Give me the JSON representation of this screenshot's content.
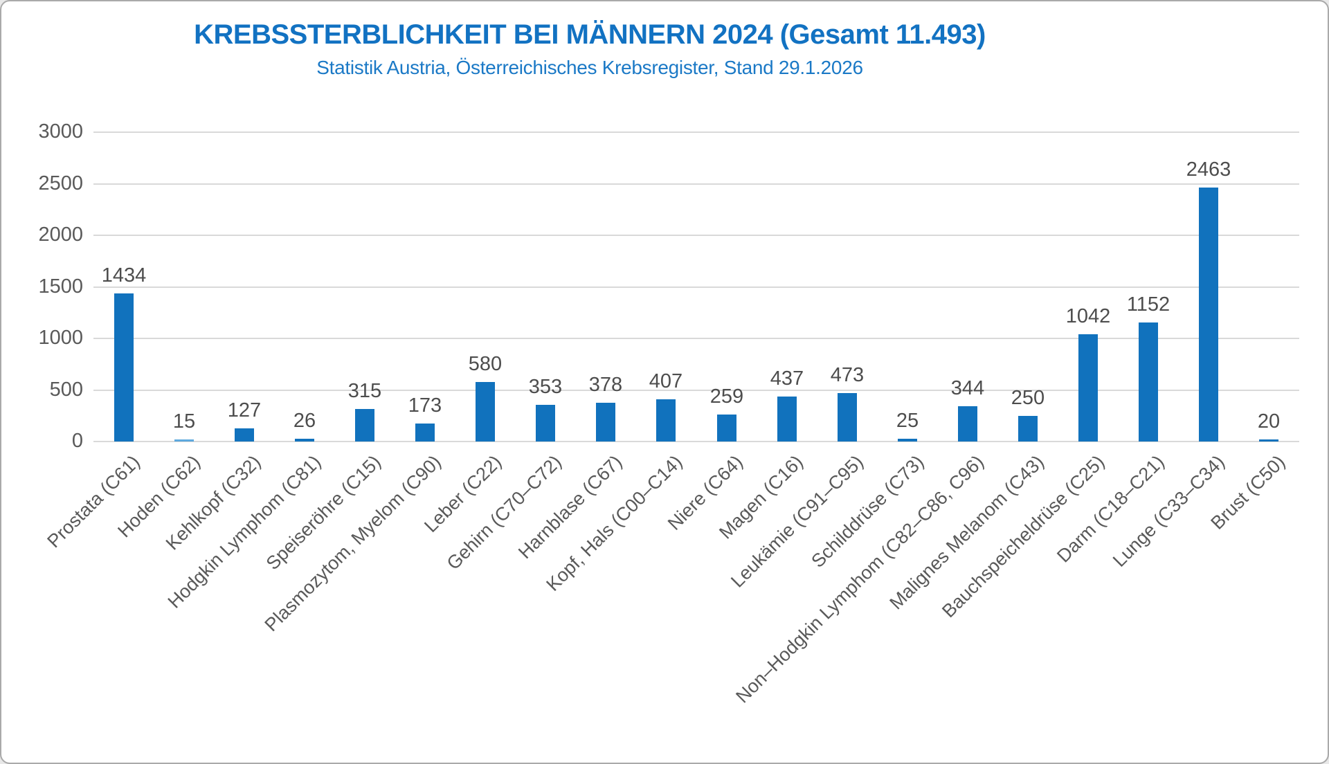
{
  "chart_data": {
    "type": "bar",
    "title": "KREBSSTERBLICHKEIT BEI MÄNNERN 2024 (Gesamt 11.493)",
    "subtitle": "Statistik Austria, Österreichisches Krebsregister, Stand 29.1.2026",
    "total_shown_in_title": "11.493",
    "categories": [
      "Prostata (C61)",
      "Hoden (C62)",
      "Kehlkopf (C32)",
      "Hodgkin Lymphom (C81)",
      "Speiseröhre (C15)",
      "Plasmozytom, Myelom (C90)",
      "Leber (C22)",
      "Gehirn (C70–C72)",
      "Harnblase (C67)",
      "Kopf, Hals (C00–C14)",
      "Niere (C64)",
      "Magen (C16)",
      "Leukämie (C91–C95)",
      "Schilddrüse (C73)",
      "Non–Hodgkin Lymphom (C82–C86, C96)",
      "Malignes Melanom (C43)",
      "Bauchspeicheldrüse (C25)",
      "Darm (C18–C21)",
      "Lunge (C33–C34)",
      "Brust (C50)"
    ],
    "values": [
      1434,
      15,
      127,
      26,
      315,
      173,
      580,
      353,
      378,
      407,
      259,
      437,
      473,
      25,
      344,
      250,
      1042,
      1152,
      2463,
      20
    ],
    "data_labels": [
      "1434",
      "15",
      "127",
      "26",
      "315",
      "173",
      "580",
      "353",
      "378",
      "407",
      "259",
      "437",
      "473",
      "25",
      "344",
      "250",
      "1042",
      "1152",
      "2463",
      "20"
    ],
    "xlabel": "",
    "ylabel": "",
    "ylim": [
      0,
      3000
    ],
    "ytick_step": 500,
    "yticks": [
      "0",
      "500",
      "1000",
      "1500",
      "2000",
      "2500",
      "3000"
    ],
    "grid": "horizontal",
    "legend": "none",
    "bar_color": "#1172bd",
    "small_bar_render_color": "#5ea9de",
    "title_color": "#1272c2",
    "grid_color": "#d9d9d9",
    "axis_text_color": "#595959"
  }
}
